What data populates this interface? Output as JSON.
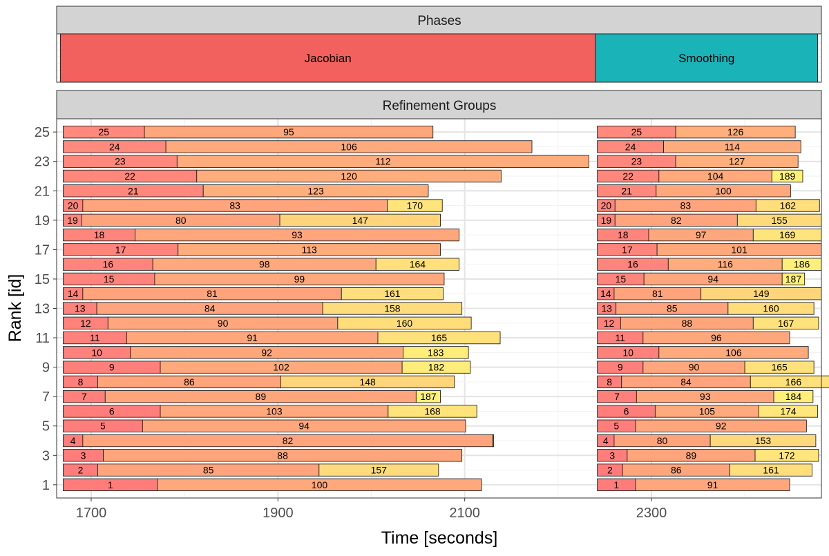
{
  "chart_data": {
    "type": "gantt",
    "phases_panel": {
      "strip_label": "Phases",
      "phases": [
        {
          "label": "Jacobian",
          "start": 1667,
          "end": 2240,
          "color": "#F2615E"
        },
        {
          "label": "Smoothing",
          "start": 2240,
          "end": 2478,
          "color": "#1AB3B8"
        }
      ]
    },
    "groups_panel": {
      "strip_label": "Refinement Groups",
      "ylabel": "Rank [id]",
      "xlabel": "Time [seconds]",
      "x_ticks": [
        "1700",
        "1900",
        "2100",
        "2300"
      ],
      "x_tick_values": [
        1700,
        1900,
        2100,
        2300
      ],
      "y_ticks": [
        "1",
        "3",
        "5",
        "7",
        "9",
        "11",
        "13",
        "15",
        "17",
        "19",
        "21",
        "23",
        "25"
      ],
      "y_tick_values": [
        1,
        3,
        5,
        7,
        9,
        11,
        13,
        15,
        17,
        19,
        21,
        23,
        25
      ],
      "xlim": [
        1663,
        2482
      ],
      "ylim": [
        0.1,
        25.9
      ],
      "grid": true,
      "colors": {
        "low": "#FF7B7B",
        "mid": "#FFB07C",
        "high": "#FFF27A",
        "border": "#222222"
      },
      "rows": [
        {
          "rank": 25,
          "segments": [
            [
              1670,
              1757,
              "25"
            ],
            [
              1757,
              2066,
              "95"
            ],
            [
              2242,
              2326,
              "25"
            ],
            [
              2326,
              2454,
              "126"
            ]
          ]
        },
        {
          "rank": 24,
          "segments": [
            [
              1670,
              1780,
              "24"
            ],
            [
              1780,
              2172,
              "106"
            ],
            [
              2242,
              2313,
              "24"
            ],
            [
              2313,
              2460,
              "114"
            ]
          ]
        },
        {
          "rank": 23,
          "segments": [
            [
              1670,
              1792,
              "23"
            ],
            [
              1792,
              2233,
              "112"
            ],
            [
              2242,
              2326,
              "23"
            ],
            [
              2326,
              2457,
              "127"
            ]
          ]
        },
        {
          "rank": 22,
          "segments": [
            [
              1670,
              1813,
              "22"
            ],
            [
              1813,
              2139,
              "120"
            ],
            [
              2242,
              2308,
              "22"
            ],
            [
              2308,
              2429,
              "104"
            ],
            [
              2429,
              2462,
              "189"
            ]
          ]
        },
        {
          "rank": 21,
          "segments": [
            [
              1670,
              1820,
              "21"
            ],
            [
              1820,
              2061,
              "123"
            ],
            [
              2242,
              2305,
              "21"
            ],
            [
              2305,
              2449,
              "100"
            ]
          ]
        },
        {
          "rank": 20,
          "segments": [
            [
              1670,
              1691,
              "20"
            ],
            [
              1691,
              2017,
              "83"
            ],
            [
              2017,
              2076,
              "170"
            ],
            [
              2242,
              2261,
              "20"
            ],
            [
              2261,
              2412,
              "83"
            ],
            [
              2412,
              2480,
              "162"
            ]
          ]
        },
        {
          "rank": 19,
          "segments": [
            [
              1670,
              1690,
              "19"
            ],
            [
              1690,
              1902,
              "80"
            ],
            [
              1902,
              2074,
              "147"
            ],
            [
              2242,
              2261,
              "19"
            ],
            [
              2261,
              2392,
              "82"
            ],
            [
              2392,
              2482,
              "155"
            ]
          ]
        },
        {
          "rank": 18,
          "segments": [
            [
              1670,
              1747,
              "18"
            ],
            [
              1747,
              2094,
              "93"
            ],
            [
              2242,
              2297,
              "18"
            ],
            [
              2297,
              2409,
              "97"
            ],
            [
              2409,
              2482,
              "169"
            ]
          ]
        },
        {
          "rank": 17,
          "segments": [
            [
              1670,
              1793,
              "17"
            ],
            [
              1793,
              2074,
              "113"
            ],
            [
              2242,
              2306,
              "17"
            ],
            [
              2306,
              2482,
              "101"
            ]
          ]
        },
        {
          "rank": 16,
          "segments": [
            [
              1670,
              1766,
              "16"
            ],
            [
              1766,
              2005,
              "98"
            ],
            [
              2005,
              2094,
              "164"
            ],
            [
              2242,
              2318,
              "16"
            ],
            [
              2318,
              2440,
              "116"
            ],
            [
              2440,
              2482,
              "186"
            ]
          ]
        },
        {
          "rank": 15,
          "segments": [
            [
              1670,
              1768,
              "15"
            ],
            [
              1768,
              2078,
              "99"
            ],
            [
              2242,
              2292,
              "15"
            ],
            [
              2292,
              2440,
              "94"
            ],
            [
              2440,
              2464,
              "187"
            ]
          ]
        },
        {
          "rank": 14,
          "segments": [
            [
              1670,
              1691,
              "14"
            ],
            [
              1691,
              1968,
              "81"
            ],
            [
              1968,
              2077,
              "161"
            ],
            [
              2242,
              2260,
              "14"
            ],
            [
              2260,
              2353,
              "81"
            ],
            [
              2353,
              2482,
              "149"
            ]
          ]
        },
        {
          "rank": 13,
          "segments": [
            [
              1670,
              1706,
              "13"
            ],
            [
              1706,
              1948,
              "84"
            ],
            [
              1948,
              2097,
              "158"
            ],
            [
              2242,
              2262,
              "13"
            ],
            [
              2262,
              2382,
              "85"
            ],
            [
              2382,
              2474,
              "160"
            ]
          ]
        },
        {
          "rank": 12,
          "segments": [
            [
              1670,
              1718,
              "12"
            ],
            [
              1718,
              1964,
              "90"
            ],
            [
              1964,
              2107,
              "160"
            ],
            [
              2242,
              2267,
              "12"
            ],
            [
              2267,
              2409,
              "88"
            ],
            [
              2409,
              2479,
              "167"
            ]
          ]
        },
        {
          "rank": 11,
          "segments": [
            [
              1670,
              1738,
              "11"
            ],
            [
              1738,
              2007,
              "91"
            ],
            [
              2007,
              2138,
              "165"
            ],
            [
              2242,
              2291,
              "11"
            ],
            [
              2291,
              2448,
              "96"
            ]
          ]
        },
        {
          "rank": 10,
          "segments": [
            [
              1670,
              1742,
              "10"
            ],
            [
              1742,
              2034,
              "92"
            ],
            [
              2034,
              2104,
              "183"
            ],
            [
              2242,
              2308,
              "10"
            ],
            [
              2308,
              2468,
              "106"
            ]
          ]
        },
        {
          "rank": 9,
          "segments": [
            [
              1670,
              1774,
              "9"
            ],
            [
              1774,
              2033,
              "102"
            ],
            [
              2033,
              2106,
              "182"
            ],
            [
              2242,
              2291,
              "9"
            ],
            [
              2291,
              2400,
              "90"
            ],
            [
              2400,
              2474,
              "165"
            ]
          ]
        },
        {
          "rank": 8,
          "segments": [
            [
              1670,
              1707,
              "8"
            ],
            [
              1707,
              1903,
              "86"
            ],
            [
              1903,
              2089,
              "148"
            ],
            [
              2242,
              2268,
              "8"
            ],
            [
              2268,
              2406,
              "84"
            ],
            [
              2406,
              2498,
              "166"
            ]
          ]
        },
        {
          "rank": 7,
          "segments": [
            [
              1670,
              1715,
              "7"
            ],
            [
              1715,
              2048,
              "89"
            ],
            [
              2048,
              2074,
              "187"
            ],
            [
              2242,
              2284,
              "7"
            ],
            [
              2284,
              2431,
              "93"
            ],
            [
              2431,
              2473,
              "184"
            ]
          ]
        },
        {
          "rank": 6,
          "segments": [
            [
              1670,
              1774,
              "6"
            ],
            [
              1774,
              2018,
              "103"
            ],
            [
              2018,
              2113,
              "168"
            ],
            [
              2242,
              2304,
              "6"
            ],
            [
              2304,
              2415,
              "105"
            ],
            [
              2415,
              2478,
              "174"
            ]
          ]
        },
        {
          "rank": 5,
          "segments": [
            [
              1670,
              1755,
              "5"
            ],
            [
              1755,
              2101,
              "94"
            ],
            [
              2242,
              2283,
              "5"
            ],
            [
              2283,
              2466,
              "92"
            ]
          ]
        },
        {
          "rank": 4,
          "segments": [
            [
              1670,
              1691,
              "4"
            ],
            [
              1691,
              2130,
              "82"
            ],
            [
              2130,
              2131,
              ""
            ],
            [
              2242,
              2260,
              "4"
            ],
            [
              2260,
              2363,
              "80"
            ],
            [
              2363,
              2476,
              "153"
            ]
          ]
        },
        {
          "rank": 3,
          "segments": [
            [
              1670,
              1713,
              "3"
            ],
            [
              1713,
              2097,
              "88"
            ],
            [
              2242,
              2274,
              "3"
            ],
            [
              2274,
              2411,
              "89"
            ],
            [
              2411,
              2479,
              "172"
            ]
          ]
        },
        {
          "rank": 2,
          "segments": [
            [
              1670,
              1707,
              "2"
            ],
            [
              1707,
              1944,
              "85"
            ],
            [
              1944,
              2072,
              "157"
            ],
            [
              2242,
              2269,
              "2"
            ],
            [
              2269,
              2384,
              "86"
            ],
            [
              2384,
              2472,
              "161"
            ]
          ]
        },
        {
          "rank": 1,
          "segments": [
            [
              1670,
              1771,
              "1"
            ],
            [
              1771,
              2118,
              "100"
            ],
            [
              2242,
              2283,
              "1"
            ],
            [
              2283,
              2448,
              "91"
            ]
          ]
        }
      ]
    }
  }
}
